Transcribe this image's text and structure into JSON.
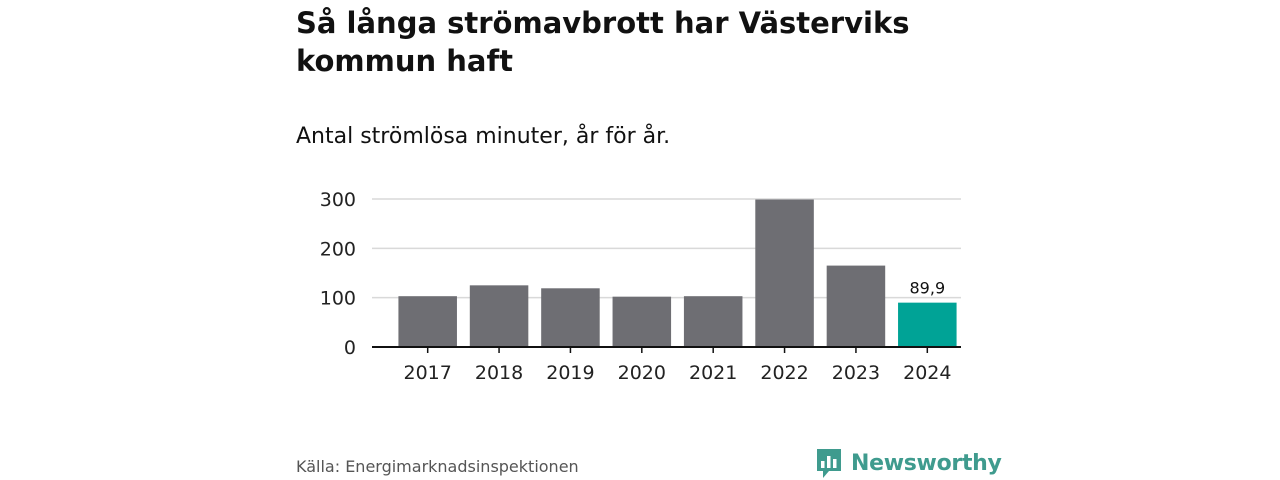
{
  "header": {
    "title": "Så långa strömavbrott har Västerviks kommun haft",
    "subtitle": "Antal strömlösa minuter, år för år."
  },
  "chart_data": {
    "type": "bar",
    "title": "Så långa strömavbrott har Västerviks kommun haft",
    "subtitle": "Antal strömlösa minuter, år för år.",
    "xlabel": "",
    "ylabel": "",
    "categories": [
      "2017",
      "2018",
      "2019",
      "2020",
      "2021",
      "2022",
      "2023",
      "2024"
    ],
    "values": [
      103,
      125,
      119,
      102,
      103,
      299,
      165,
      89.9
    ],
    "ylim": [
      0,
      300
    ],
    "yticks": [
      0,
      100,
      200,
      300
    ],
    "ytick_labels": [
      "0",
      "100",
      "200",
      "300"
    ],
    "grid": true,
    "highlight_index": 7,
    "data_labels": [
      {
        "index": 7,
        "text": "89,9"
      }
    ],
    "colors": {
      "bar": "#6e6e73",
      "highlight": "#00a396",
      "grid": "#d9d9d9",
      "axis": "#111111"
    }
  },
  "footer": {
    "source": "Källa: Energimarknadsinspektionen",
    "brand": "Newsworthy",
    "brand_icon": "bar-chart-speech-bubble-icon",
    "brand_color": "#3f9b8e"
  }
}
